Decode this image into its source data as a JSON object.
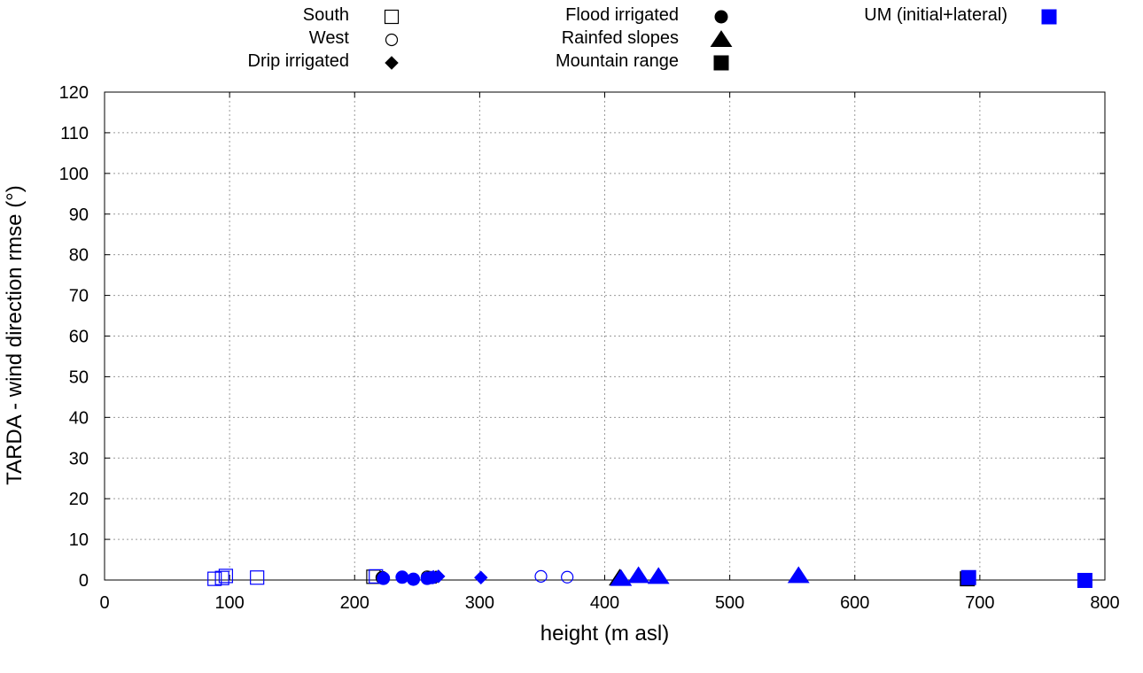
{
  "chart_data": {
    "type": "scatter",
    "title": "",
    "xlabel": "height (m asl)",
    "ylabel": "TARDA - wind direction rmse (°)",
    "xlim": [
      0,
      800
    ],
    "ylim": [
      0,
      120
    ],
    "xticks": [
      "0",
      "100",
      "200",
      "300",
      "400",
      "500",
      "600",
      "700",
      "800"
    ],
    "yticks": [
      "0",
      "10",
      "20",
      "30",
      "40",
      "50",
      "60",
      "70",
      "80",
      "90",
      "100",
      "110",
      "120"
    ],
    "grid": true,
    "legend_position": "top",
    "series": [
      {
        "name": "South",
        "symbol": "square-open",
        "color": "#000000",
        "points": [
          [
            215,
            0.8
          ]
        ]
      },
      {
        "name": "West",
        "symbol": "circle-open",
        "color": "#000000",
        "points": [
          [
            258,
            0.8
          ]
        ]
      },
      {
        "name": "Drip irrigated",
        "symbol": "diamond-filled",
        "color": "#000000",
        "points": [
          [
            265,
            0.7
          ]
        ]
      },
      {
        "name": "Flood irrigated",
        "symbol": "circle-filled",
        "color": "#000000",
        "points": [
          [
            222,
            0.6
          ],
          [
            260,
            0.6
          ]
        ]
      },
      {
        "name": "Rainfed slopes",
        "symbol": "triangle-filled",
        "color": "#000000",
        "points": [
          [
            412,
            0.4
          ]
        ]
      },
      {
        "name": "Mountain range",
        "symbol": "square-filled",
        "color": "#000000",
        "points": [
          [
            690,
            0.3
          ]
        ]
      },
      {
        "name": "UM (initial+lateral) South",
        "symbol": "square-open",
        "color": "#0000ff",
        "points": [
          [
            88,
            0.3
          ],
          [
            94,
            0.5
          ],
          [
            97,
            1.0
          ],
          [
            122,
            0.6
          ],
          [
            217,
            0.9
          ]
        ]
      },
      {
        "name": "UM (initial+lateral) West",
        "symbol": "circle-open",
        "color": "#0000ff",
        "points": [
          [
            349,
            0.9
          ],
          [
            370,
            0.7
          ]
        ]
      },
      {
        "name": "UM (initial+lateral) Drip irrigated",
        "symbol": "diamond-filled",
        "color": "#0000ff",
        "points": [
          [
            263,
            0.8
          ],
          [
            267,
            0.9
          ],
          [
            301,
            0.6
          ]
        ]
      },
      {
        "name": "UM (initial+lateral) Flood irrigated",
        "symbol": "circle-filled",
        "color": "#0000ff",
        "points": [
          [
            223,
            0.4
          ],
          [
            238,
            0.7
          ],
          [
            247,
            0.2
          ],
          [
            258,
            0.4
          ],
          [
            262,
            0.6
          ]
        ]
      },
      {
        "name": "UM (initial+lateral) Rainfed slopes",
        "symbol": "triangle-filled",
        "color": "#0000ff",
        "points": [
          [
            413,
            0.3
          ],
          [
            427,
            1.0
          ],
          [
            443,
            0.8
          ],
          [
            555,
            1.0
          ]
        ]
      },
      {
        "name": "UM (initial+lateral) Mountain range",
        "symbol": "square-filled",
        "color": "#0000ff",
        "points": [
          [
            691,
            0.6
          ],
          [
            784,
            -0.1
          ]
        ]
      }
    ],
    "legend": [
      {
        "label": "South",
        "symbol": "square-open",
        "color": "#000000"
      },
      {
        "label": "West",
        "symbol": "circle-open",
        "color": "#000000"
      },
      {
        "label": "Drip irrigated",
        "symbol": "diamond-filled",
        "color": "#000000"
      },
      {
        "label": "Flood irrigated",
        "symbol": "circle-filled",
        "color": "#000000"
      },
      {
        "label": "Rainfed slopes",
        "symbol": "triangle-filled",
        "color": "#000000"
      },
      {
        "label": "Mountain range",
        "symbol": "square-filled",
        "color": "#000000"
      },
      {
        "label": "UM (initial+lateral)",
        "symbol": "square-filled",
        "color": "#0000ff"
      }
    ]
  }
}
